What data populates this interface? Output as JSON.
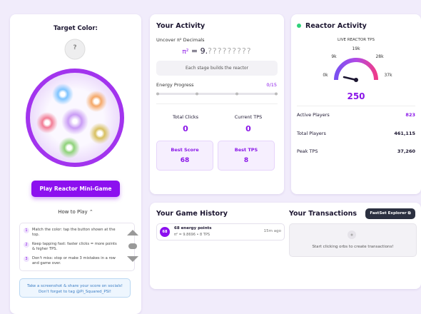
{
  "game_panel": {
    "target_label": "Target Color:",
    "target_value": "?",
    "play_button": "Play Reactor Mini-Game",
    "how_to_play": "How to Play",
    "steps": [
      {
        "number": "1",
        "text": "Match the color: tap the button shown at the top."
      },
      {
        "number": "2",
        "text": "Keep tapping fast: faster clicks = more points & higher TPS."
      },
      {
        "number": "3",
        "text": "Don't miss: stop or make 3 mistakes in a row and game over."
      }
    ],
    "note": [
      "Take a screenshot & share your score on socials!",
      "Don't forget to tag @Pi_Squared_PSI!"
    ]
  },
  "activity": {
    "title": "Your Activity",
    "uncover": "Uncover π² Decimals",
    "pi": "π²",
    "equals": "= 9.",
    "hidden": "?????????",
    "stage_note": "Each stage builds the reactor",
    "progress_label": "Energy Progress",
    "progress_value": "0/15",
    "stats": [
      {
        "label": "Total Clicks",
        "value": "0"
      },
      {
        "label": "Current TPS",
        "value": "0"
      }
    ],
    "bests": [
      {
        "label": "Best Score",
        "value": "68"
      },
      {
        "label": "Best TPS",
        "value": "8"
      }
    ]
  },
  "reactor": {
    "title": "Reactor Activity",
    "gauge_title": "LIVE REACTOR TPS",
    "gauge_labels": [
      "0k",
      "9k",
      "19k",
      "28k",
      "37k"
    ],
    "gauge_value": "250",
    "rows": [
      {
        "label": "Active Players",
        "value": "823"
      },
      {
        "label": "Total Players",
        "value": "461,115"
      },
      {
        "label": "Peak TPS",
        "value": "37,260"
      }
    ]
  },
  "history": {
    "title": "Your Game History",
    "items": [
      {
        "badge": "68",
        "title": "68 energy points",
        "detail": "π² = 9.8696 • 8 TPS",
        "time": "15m ago"
      }
    ]
  },
  "transactions": {
    "title": "Your Transactions",
    "explorer_button": "FastSet Explorer",
    "empty": "Start clicking orbs to create transactions!"
  }
}
